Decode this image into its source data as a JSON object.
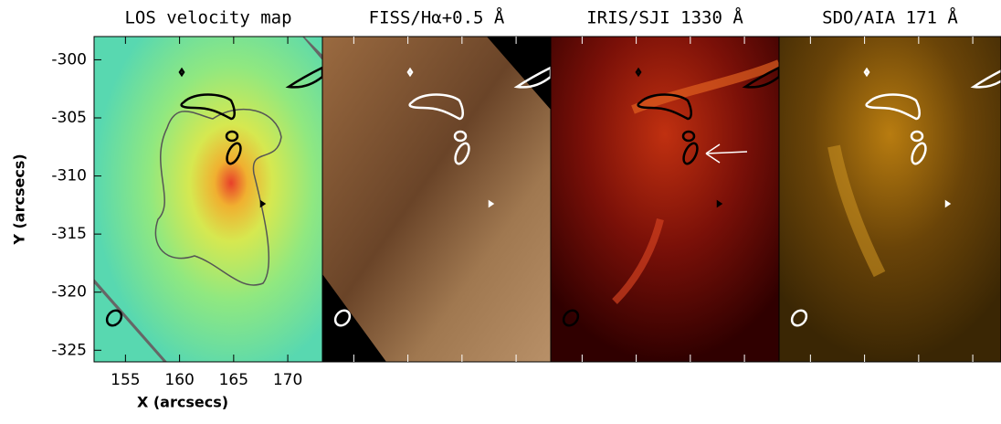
{
  "chart_data": [
    {
      "type": "image",
      "title": "LOS velocity map",
      "xlabel": "X (arcsecs)",
      "ylabel": "Y (arcsecs)",
      "xlim": [
        152.1,
        173.2
      ],
      "ylim": [
        -326,
        -298
      ],
      "xticks": [
        155,
        160,
        165,
        170
      ],
      "yticks": [
        -300,
        -305,
        -310,
        -315,
        -320,
        -325
      ]
    },
    {
      "type": "image",
      "title": "FISS/Hα+0.5 Å"
    },
    {
      "type": "image",
      "title": "IRIS/SJI 1330 Å"
    },
    {
      "type": "image",
      "title": "SDO/AIA 171 Å"
    }
  ]
}
